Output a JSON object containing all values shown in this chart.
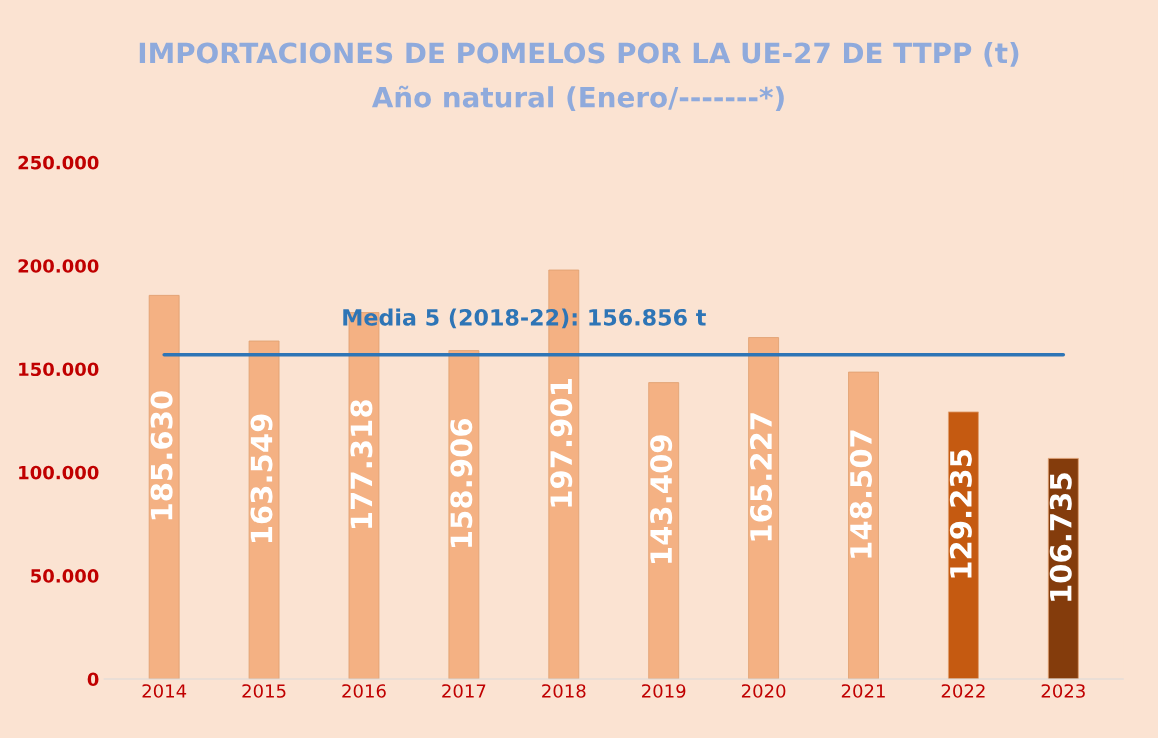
{
  "chart_data": {
    "type": "bar",
    "title": "IMPORTACIONES DE POMELOS POR LA UE-27 DE TTPP (t)",
    "subtitle": "Año natural (Enero/-------*)",
    "categories": [
      "2014",
      "2015",
      "2016",
      "2017",
      "2018",
      "2019",
      "2020",
      "2021",
      "2022",
      "2023"
    ],
    "values": [
      185630,
      163549,
      177318,
      158906,
      197901,
      143409,
      165227,
      148507,
      129235,
      106735
    ],
    "value_labels": [
      "185.630",
      "163.549",
      "177.318",
      "158.906",
      "197.901",
      "143.409",
      "165.227",
      "148.507",
      "129.235",
      "106.735"
    ],
    "colors": [
      "#f4b183",
      "#f4b183",
      "#f4b183",
      "#f4b183",
      "#f4b183",
      "#f4b183",
      "#f4b183",
      "#f4b183",
      "#c55a11",
      "#843c0c"
    ],
    "ylim": [
      0,
      250000
    ],
    "yticks": [
      {
        "value": 0,
        "label": "0"
      },
      {
        "value": 50000,
        "label": "50.000"
      },
      {
        "value": 100000,
        "label": "100.000"
      },
      {
        "value": 150000,
        "label": "150.000"
      },
      {
        "value": 200000,
        "label": "200.000"
      },
      {
        "value": 250000,
        "label": "250.000"
      }
    ],
    "ref_lines": [
      {
        "axis": "y",
        "value": 156856,
        "label": "Media 5 (2018-22): 156.856 t",
        "color": "#2e75b6"
      }
    ],
    "grid": false,
    "legend": false
  }
}
